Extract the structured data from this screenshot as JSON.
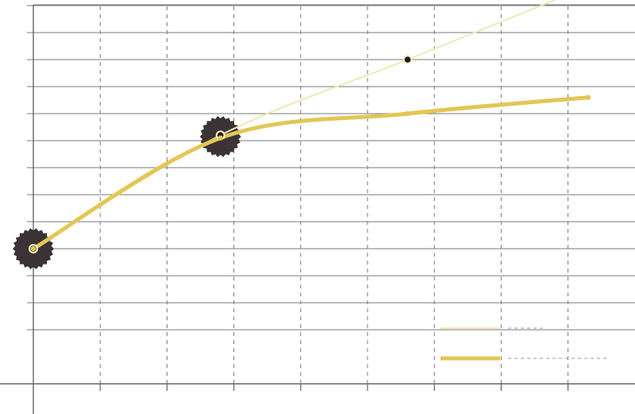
{
  "chart_data": {
    "type": "line",
    "title": "",
    "xlabel": "",
    "ylabel": "",
    "xlim": [
      0,
      9
    ],
    "ylim": [
      -1,
      13
    ],
    "grid": {
      "horizontal": "solid",
      "vertical": "dashed"
    },
    "legend": {
      "position": "bottom-right",
      "entries": [
        "",
        ""
      ]
    },
    "series": [
      {
        "name": "",
        "color": "#f2e7b6",
        "points": [
          [
            0,
            3
          ],
          [
            2.8,
            7.2
          ],
          [
            5.6,
            10
          ],
          [
            8.3,
            12.7
          ]
        ],
        "markers": "dark"
      },
      {
        "name": "",
        "color": "#e3c655",
        "points": [
          [
            0,
            3
          ],
          [
            2.8,
            7.1
          ],
          [
            5.6,
            8
          ],
          [
            8.3,
            8.6
          ]
        ],
        "markers": "small"
      }
    ],
    "highlights": [
      [
        0,
        3
      ],
      [
        2.8,
        7.15
      ]
    ]
  }
}
